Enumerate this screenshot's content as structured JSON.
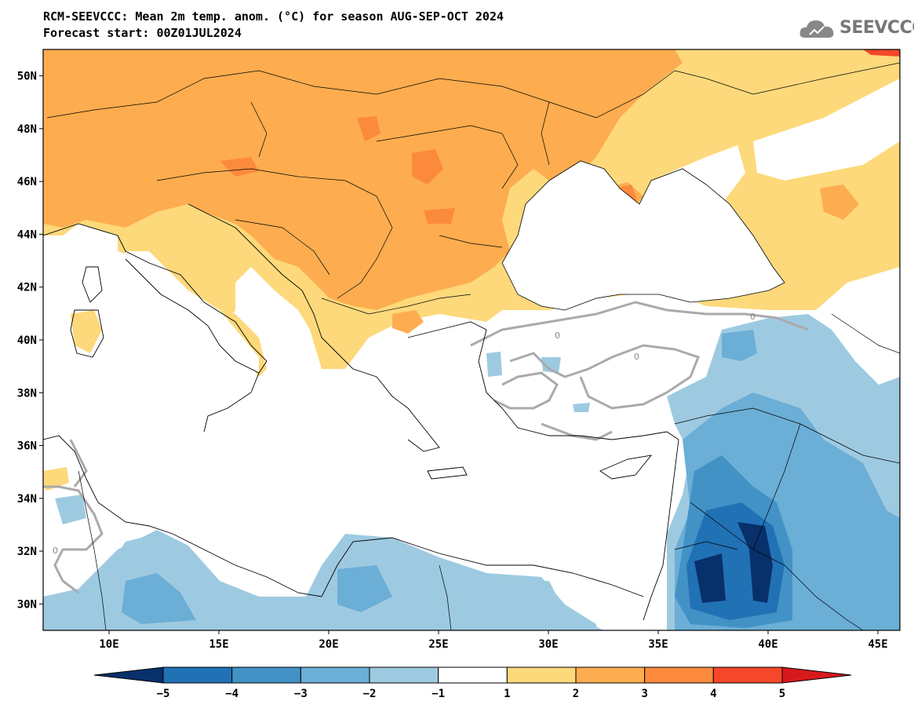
{
  "header": {
    "title": "RCM-SEEVCCC: Mean 2m temp. anom. (°C) for season AUG-SEP-OCT 2024",
    "subtitle": "Forecast start: 00Z01JUL2024"
  },
  "logo": {
    "text": "SEEVCCC",
    "icon": "cloud-icon"
  },
  "map": {
    "lat_range": [
      29,
      51
    ],
    "lon_range": [
      7,
      46
    ],
    "lat_ticks": [
      "30N",
      "32N",
      "34N",
      "36N",
      "38N",
      "40N",
      "42N",
      "44N",
      "46N",
      "48N",
      "50N"
    ],
    "lon_ticks": [
      "10E",
      "15E",
      "20E",
      "25E",
      "30E",
      "35E",
      "40E",
      "45E"
    ],
    "contour_label": "0"
  },
  "colorbar": {
    "labels": [
      "-5",
      "-4",
      "-3",
      "-2",
      "-1",
      "1",
      "2",
      "3",
      "4",
      "5"
    ],
    "colors": [
      "#08306b",
      "#2171b5",
      "#4292c6",
      "#6baed6",
      "#9ecae1",
      "#ffffff",
      "#fdd97b",
      "#fdad4f",
      "#fc8a3c",
      "#f5482a",
      "#d7191c"
    ]
  },
  "palette": {
    "sea": "#ffffff",
    "warm_1_2": "#fdd97b",
    "warm_2_3": "#fdad4f",
    "warm_3_4": "#fc8a3c",
    "cool_1_2": "#9ecae1",
    "cool_2_3": "#6baed6",
    "cool_3_4": "#4292c6",
    "cool_4_5": "#2171b5",
    "cool_5": "#08306b"
  }
}
